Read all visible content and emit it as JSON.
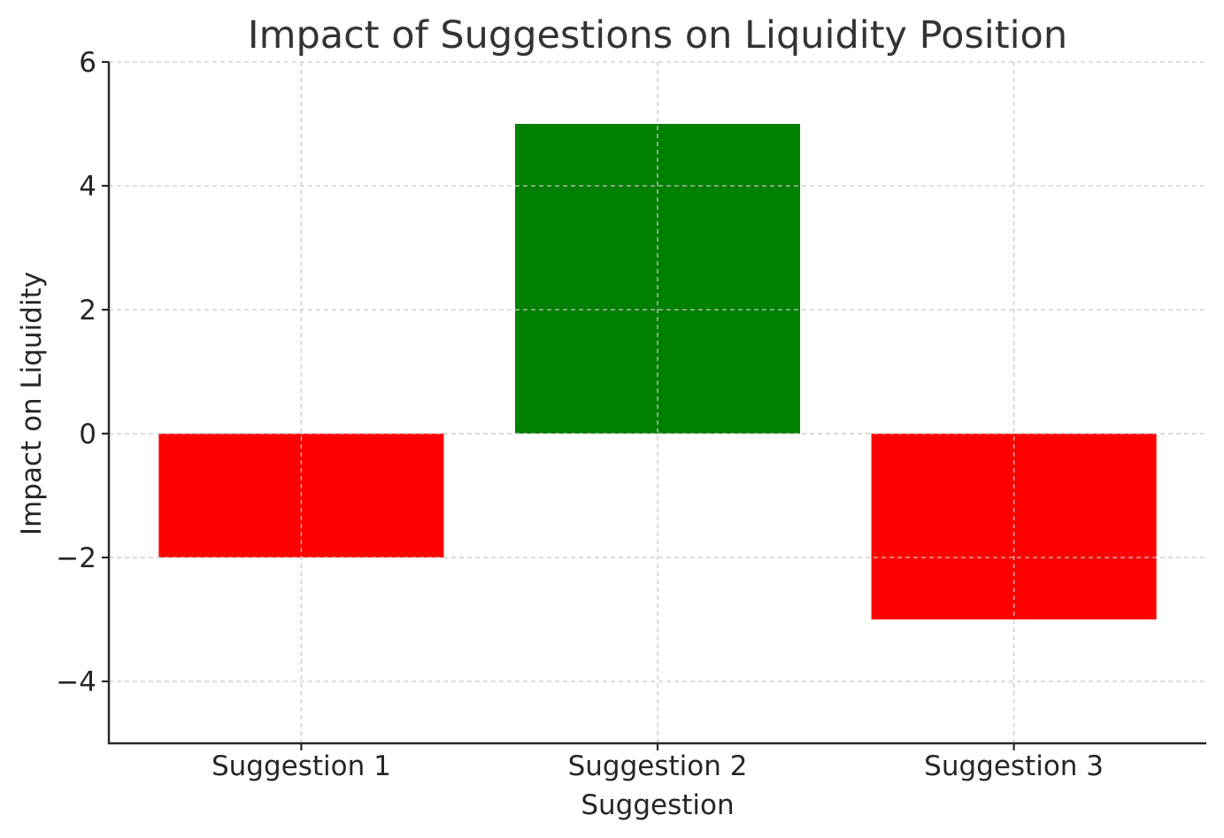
{
  "chart_data": {
    "type": "bar",
    "title": "Impact of Suggestions on Liquidity Position",
    "xlabel": "Suggestion",
    "ylabel": "Impact on Liquidity",
    "categories": [
      "Suggestion 1",
      "Suggestion 2",
      "Suggestion 3"
    ],
    "values": [
      -2,
      5,
      -3
    ],
    "bar_colors": [
      "#ff0000",
      "#008000",
      "#ff0000"
    ],
    "ylim": [
      -5,
      6
    ],
    "yticks": [
      6,
      4,
      2,
      0,
      -2,
      -4
    ],
    "ytick_labels": [
      "6",
      "4",
      "2",
      "0",
      "−2",
      "−4"
    ],
    "grid": true
  }
}
